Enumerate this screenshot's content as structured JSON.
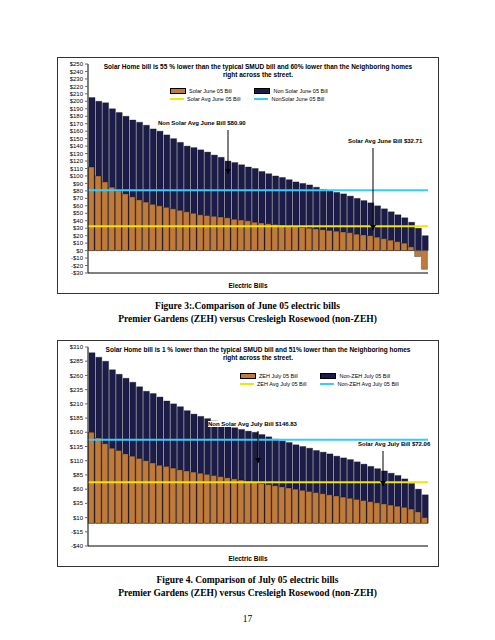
{
  "chart_data": [
    {
      "type": "bar",
      "annotations": [
        "Solar Home bill is 55 % lower than the typical SMUD bill and 60% lower than the  Neighboring homes right across the street.",
        "Non Solar Avg June Bill $80.90",
        "Solar Avg June Bill $32.71"
      ],
      "x_label": "Electric Bills",
      "series": [
        {
          "name": "Solar June 05 Bill",
          "color": "#c07a3a",
          "values": [
            112,
            100,
            92,
            85,
            80,
            76,
            72,
            68,
            65,
            62,
            60,
            58,
            56,
            54,
            52,
            50,
            48,
            47,
            46,
            45,
            44,
            42,
            41,
            40,
            38,
            37,
            36,
            35,
            34,
            33,
            32,
            31,
            30,
            29,
            28,
            27,
            26,
            25,
            24,
            22,
            21,
            20,
            18,
            16,
            14,
            12,
            10,
            5,
            -8,
            -25
          ]
        },
        {
          "name": "Non Solar June 05 Bill",
          "color": "#1c1c4a",
          "values": [
            205,
            200,
            198,
            190,
            185,
            180,
            175,
            172,
            168,
            163,
            160,
            155,
            150,
            145,
            140,
            138,
            135,
            132,
            128,
            125,
            120,
            118,
            115,
            112,
            110,
            106,
            103,
            100,
            98,
            95,
            92,
            90,
            88,
            85,
            82,
            80,
            78,
            76,
            73,
            70,
            67,
            64,
            60,
            56,
            52,
            48,
            44,
            38,
            30,
            20
          ]
        }
      ],
      "averages": [
        {
          "name": "Solar Avg June 05 Bill",
          "color": "#f2e600",
          "value": 32.71
        },
        {
          "name": "NonSolar June 05 Bill",
          "color": "#33ccff",
          "value": 80.9
        }
      ],
      "ylim": [
        -30,
        250
      ],
      "yticks": [
        {
          "value": -30,
          "label": "-$30"
        },
        {
          "value": -20,
          "label": "-$20"
        },
        {
          "value": -10,
          "label": "-$10"
        },
        {
          "value": 0,
          "label": "$0"
        },
        {
          "value": 10,
          "label": "$10"
        },
        {
          "value": 20,
          "label": "$20"
        },
        {
          "value": 30,
          "label": "$30"
        },
        {
          "value": 40,
          "label": "$40"
        },
        {
          "value": 50,
          "label": "$50"
        },
        {
          "value": 60,
          "label": "$60"
        },
        {
          "value": 70,
          "label": "$70"
        },
        {
          "value": 80,
          "label": "$80"
        },
        {
          "value": 90,
          "label": "$90"
        },
        {
          "value": 100,
          "label": "$100"
        },
        {
          "value": 110,
          "label": "$110"
        },
        {
          "value": 120,
          "label": "$120"
        },
        {
          "value": 130,
          "label": "$130"
        },
        {
          "value": 140,
          "label": "$140"
        },
        {
          "value": 150,
          "label": "$150"
        },
        {
          "value": 160,
          "label": "$160"
        },
        {
          "value": 170,
          "label": "$170"
        },
        {
          "value": 180,
          "label": "$180"
        },
        {
          "value": 190,
          "label": "$190"
        },
        {
          "value": 200,
          "label": "$200"
        },
        {
          "value": 210,
          "label": "$210"
        },
        {
          "value": 220,
          "label": "$220"
        },
        {
          "value": 230,
          "label": "$230"
        },
        {
          "value": 240,
          "label": "$240"
        },
        {
          "value": 250,
          "label": "$250"
        }
      ],
      "tick_labels": "y"
    },
    {
      "type": "bar",
      "annotations": [
        "Solar Home bill is 1 % lower than the typical SMUD bill and 51% lower than the  Neighboring homes right across the street.",
        "Non Solar Avg July Bill $146.83",
        "Solar Avg July Bill $72.06"
      ],
      "x_label": "Electric Bills",
      "series": [
        {
          "name": "ZEH July 05 Bill",
          "color": "#c07a3a",
          "values": [
            160,
            150,
            140,
            132,
            128,
            122,
            118,
            114,
            110,
            106,
            102,
            100,
            97,
            94,
            92,
            90,
            88,
            86,
            84,
            82,
            80,
            78,
            76,
            74,
            72,
            70,
            68,
            66,
            64,
            62,
            60,
            58,
            56,
            54,
            52,
            50,
            48,
            46,
            44,
            42,
            40,
            38,
            36,
            34,
            32,
            30,
            28,
            25,
            20,
            10
          ]
        },
        {
          "name": "Non-ZEH July 05 Bill",
          "color": "#1c1c4a",
          "values": [
            300,
            292,
            285,
            270,
            262,
            255,
            248,
            240,
            232,
            228,
            222,
            215,
            210,
            205,
            198,
            192,
            188,
            184,
            180,
            176,
            172,
            168,
            165,
            162,
            160,
            156,
            152,
            148,
            145,
            142,
            138,
            135,
            132,
            128,
            125,
            122,
            118,
            115,
            112,
            108,
            104,
            100,
            96,
            92,
            88,
            84,
            78,
            70,
            60,
            50
          ]
        }
      ],
      "averages": [
        {
          "name": "ZEH Avg July 05 Bill",
          "color": "#f2e600",
          "value": 72.06
        },
        {
          "name": "Non-ZEH Avg July 05 Bill",
          "color": "#33ccff",
          "value": 146.83
        }
      ],
      "ylim": [
        -40,
        310
      ],
      "yticks": [
        {
          "value": -40,
          "label": "-$40"
        },
        {
          "value": -15,
          "label": "-$15"
        },
        {
          "value": 10,
          "label": "$10"
        },
        {
          "value": 35,
          "label": "$35"
        },
        {
          "value": 60,
          "label": "$60"
        },
        {
          "value": 85,
          "label": "$85"
        },
        {
          "value": 110,
          "label": "$110"
        },
        {
          "value": 135,
          "label": "$135"
        },
        {
          "value": 160,
          "label": "$160"
        },
        {
          "value": 185,
          "label": "$185"
        },
        {
          "value": 210,
          "label": "$210"
        },
        {
          "value": 235,
          "label": "$235"
        },
        {
          "value": 260,
          "label": "$260"
        },
        {
          "value": 285,
          "label": "$285"
        },
        {
          "value": 310,
          "label": "$310"
        }
      ],
      "tick_labels": "y"
    }
  ],
  "captions": [
    [
      "Figure 3:.Comparison of June 05 electric bills",
      "Premier Gardens (ZEH) versus Cresleigh Rosewood (non-ZEH)"
    ],
    [
      "Figure 4. Comparison of July 05 electric bills",
      "Premier Gardens (ZEH) versus Cresleigh Rosewood (non-ZEH)"
    ]
  ],
  "page_number": "17"
}
